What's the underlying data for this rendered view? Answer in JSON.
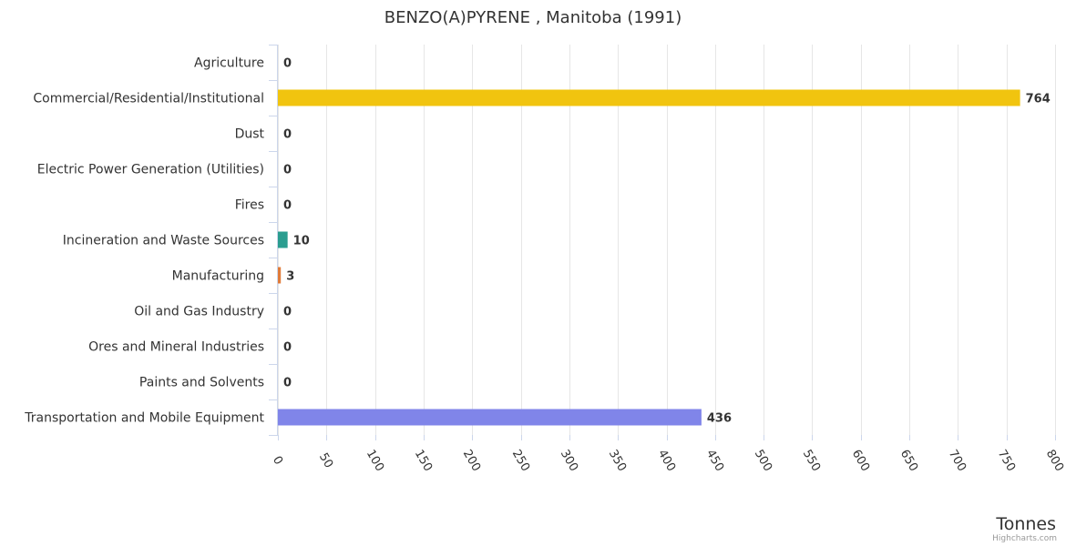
{
  "chart_data": {
    "type": "bar",
    "orientation": "horizontal",
    "title": "BENZO(A)PYRENE , Manitoba (1991)",
    "xlabel": "Tonnes",
    "ylabel": "",
    "xlim": [
      0,
      800
    ],
    "ticks": [
      "0",
      "50",
      "100",
      "150",
      "200",
      "250",
      "300",
      "350",
      "400",
      "450",
      "500",
      "550",
      "600",
      "650",
      "700",
      "750",
      "800"
    ],
    "tick_values": [
      0,
      50,
      100,
      150,
      200,
      250,
      300,
      350,
      400,
      450,
      500,
      550,
      600,
      650,
      700,
      750,
      800
    ],
    "grid": true,
    "legend": "none",
    "categories": [
      "Agriculture",
      "Commercial/Residential/Institutional",
      "Dust",
      "Electric Power Generation (Utilities)",
      "Fires",
      "Incineration and Waste Sources",
      "Manufacturing",
      "Oil and Gas Industry",
      "Ores and Mineral Industries",
      "Paints and Solvents",
      "Transportation and Mobile Equipment"
    ],
    "values": [
      0,
      764,
      0,
      0,
      0,
      10,
      3,
      0,
      0,
      0,
      436
    ],
    "value_labels": [
      "0",
      "764",
      "0",
      "0",
      "0",
      "10",
      "3",
      "0",
      "0",
      "0",
      "436"
    ],
    "colors": [
      "#7cb5ec",
      "#f1c40f",
      "#2c3e50",
      "#34495e",
      "#e74c3c",
      "#2a9d8f",
      "#e07b39",
      "#8e44ad",
      "#16a085",
      "#c0392b",
      "#8085e9"
    ]
  },
  "credits": "Highcharts.com"
}
